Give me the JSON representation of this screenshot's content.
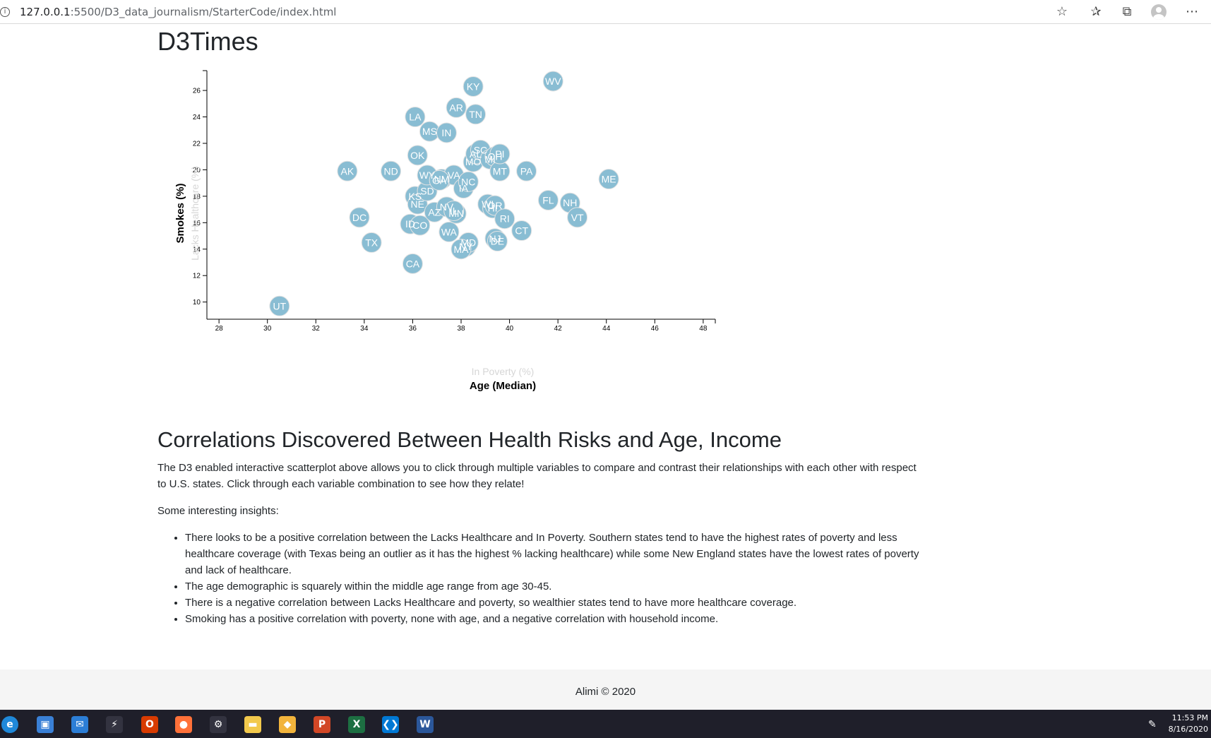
{
  "browser": {
    "url_host": "127.0.0.1",
    "url_path": ":5500/D3_data_journalism/StarterCode/index.html",
    "icons": [
      "info-icon",
      "star-icon",
      "favorites-icon",
      "collections-icon",
      "profile-avatar-icon",
      "more-icon"
    ]
  },
  "page": {
    "title": "D3Times"
  },
  "chart_data": {
    "type": "scatter",
    "x_axis": {
      "active_label": "Age (Median)",
      "inactive_labels": [
        "In Poverty (%)"
      ],
      "range": [
        27.5,
        48.5
      ],
      "ticks": [
        28,
        30,
        32,
        34,
        36,
        38,
        40,
        42,
        44,
        46,
        48
      ]
    },
    "y_axis": {
      "active_label": "Smokes (%)",
      "inactive_labels": [
        "Lacks Healthcare (%)"
      ],
      "range": [
        8.7,
        27.5
      ],
      "ticks": [
        10,
        12,
        14,
        16,
        18,
        20,
        22,
        24,
        26
      ]
    },
    "marker_color": "#89bdd3",
    "points": [
      {
        "label": "UT",
        "x": 30.5,
        "y": 9.7
      },
      {
        "label": "AK",
        "x": 33.3,
        "y": 19.9
      },
      {
        "label": "DC",
        "x": 33.8,
        "y": 16.4
      },
      {
        "label": "TX",
        "x": 34.3,
        "y": 14.5
      },
      {
        "label": "ND",
        "x": 35.1,
        "y": 19.9
      },
      {
        "label": "CA",
        "x": 36.0,
        "y": 12.9
      },
      {
        "label": "LA",
        "x": 36.1,
        "y": 24.0
      },
      {
        "label": "OK",
        "x": 36.2,
        "y": 21.1
      },
      {
        "label": "ID",
        "x": 35.9,
        "y": 15.9
      },
      {
        "label": "CO",
        "x": 36.3,
        "y": 15.8
      },
      {
        "label": "KS",
        "x": 36.1,
        "y": 18.0
      },
      {
        "label": "NE",
        "x": 36.2,
        "y": 17.4
      },
      {
        "label": "MS",
        "x": 36.7,
        "y": 22.9
      },
      {
        "label": "SD",
        "x": 36.6,
        "y": 18.4
      },
      {
        "label": "WY",
        "x": 36.6,
        "y": 19.6
      },
      {
        "label": "NM",
        "x": 37.2,
        "y": 19.3
      },
      {
        "label": "AZ",
        "x": 36.9,
        "y": 16.8
      },
      {
        "label": "IN",
        "x": 37.4,
        "y": 22.8
      },
      {
        "label": "NV",
        "x": 37.4,
        "y": 17.2
      },
      {
        "label": "WA",
        "x": 37.5,
        "y": 15.3
      },
      {
        "label": "VA",
        "x": 37.7,
        "y": 19.6
      },
      {
        "label": "MN",
        "x": 37.8,
        "y": 16.7
      },
      {
        "label": "AR",
        "x": 37.8,
        "y": 24.7
      },
      {
        "label": "IL",
        "x": 37.7,
        "y": 16.9
      },
      {
        "label": "GA",
        "x": 37.1,
        "y": 19.2
      },
      {
        "label": "IA",
        "x": 38.1,
        "y": 18.6
      },
      {
        "label": "NC",
        "x": 38.3,
        "y": 19.1
      },
      {
        "label": "NY",
        "x": 38.2,
        "y": 14.2
      },
      {
        "label": "MD",
        "x": 38.3,
        "y": 14.5
      },
      {
        "label": "MA",
        "x": 38.0,
        "y": 14.0
      },
      {
        "label": "KY",
        "x": 38.5,
        "y": 26.3
      },
      {
        "label": "TN",
        "x": 38.6,
        "y": 24.2
      },
      {
        "label": "MO",
        "x": 38.5,
        "y": 20.6
      },
      {
        "label": "AL",
        "x": 38.6,
        "y": 21.2
      },
      {
        "label": "SC",
        "x": 38.8,
        "y": 21.5
      },
      {
        "label": "MI",
        "x": 39.2,
        "y": 20.8
      },
      {
        "label": "OH",
        "x": 39.4,
        "y": 21.0
      },
      {
        "label": "WI",
        "x": 39.1,
        "y": 17.4
      },
      {
        "label": "HI",
        "x": 39.3,
        "y": 17.1
      },
      {
        "label": "OR",
        "x": 39.4,
        "y": 17.3
      },
      {
        "label": "NJ",
        "x": 39.4,
        "y": 14.8
      },
      {
        "label": "DE",
        "x": 39.5,
        "y": 14.6
      },
      {
        "label": "RI",
        "x": 39.8,
        "y": 16.3
      },
      {
        "label": "MT",
        "x": 39.6,
        "y": 19.9
      },
      {
        "label": "PA",
        "x": 40.7,
        "y": 19.9
      },
      {
        "label": "CT",
        "x": 40.5,
        "y": 15.4
      },
      {
        "label": "PI",
        "x": 39.6,
        "y": 21.2
      },
      {
        "label": "FL",
        "x": 41.6,
        "y": 17.7
      },
      {
        "label": "WV",
        "x": 41.8,
        "y": 26.7
      },
      {
        "label": "NH",
        "x": 42.5,
        "y": 17.5
      },
      {
        "label": "VT",
        "x": 42.8,
        "y": 16.4
      },
      {
        "label": "ME",
        "x": 44.1,
        "y": 19.3
      }
    ]
  },
  "article": {
    "heading": "Correlations Discovered Between Health Risks and Age, Income",
    "intro": "The D3 enabled interactive scatterplot above allows you to click through multiple variables to compare and contrast their relationships with each other with respect to U.S. states. Click through each variable combination to see how they relate!",
    "insights_label": "Some interesting insights:",
    "insights": [
      "There looks to be a positive correlation between the Lacks Healthcare and In Poverty. Southern states tend to have the highest rates of poverty and less healthcare coverage (with Texas being an outlier as it has the highest % lacking healthcare) while some New England states have the lowest rates of poverty and lack of healthcare.",
      "The age demographic is squarely within the middle age range from age 30-45.",
      "There is a negative correlation between Lacks Healthcare and poverty, so wealthier states tend to have more healthcare coverage.",
      "Smoking has a positive correlation with poverty, none with age, and a negative correlation with household income."
    ]
  },
  "footer": {
    "text": "Alimi © 2020"
  },
  "taskbar": {
    "time": "11:53 PM",
    "date": "8/16/2020",
    "apps": [
      {
        "name": "edge-icon",
        "glyph": "e",
        "color": "#1f88d9"
      },
      {
        "name": "store-icon",
        "glyph": "▣",
        "color": "#3a80d6"
      },
      {
        "name": "mail-icon",
        "glyph": "✉",
        "color": "#2c7ed6"
      },
      {
        "name": "app-icon",
        "glyph": "⚡",
        "color": "#333340"
      },
      {
        "name": "office-icon",
        "glyph": "O",
        "color": "#d83b01"
      },
      {
        "name": "firefox-icon",
        "glyph": "●",
        "color": "#ff7139"
      },
      {
        "name": "settings-icon",
        "glyph": "⚙",
        "color": "#333340"
      },
      {
        "name": "file-explorer-icon",
        "glyph": "▬",
        "color": "#f2c94c"
      },
      {
        "name": "git-icon",
        "glyph": "◆",
        "color": "#f2b43c"
      },
      {
        "name": "powerpoint-icon",
        "glyph": "P",
        "color": "#d24726"
      },
      {
        "name": "excel-icon",
        "glyph": "X",
        "color": "#1d6f42"
      },
      {
        "name": "vscode-icon",
        "glyph": "❮❯",
        "color": "#0078d4"
      },
      {
        "name": "word-icon",
        "glyph": "W",
        "color": "#2b579a"
      }
    ]
  }
}
